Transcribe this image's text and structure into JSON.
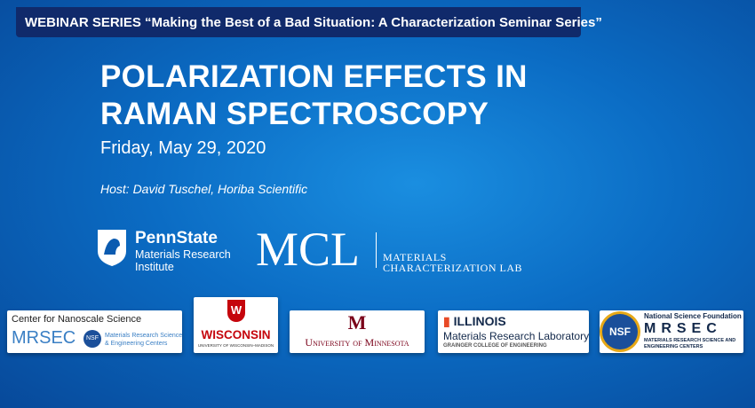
{
  "banner": "WEBINAR SERIES “Making the Best of a Bad Situation: A Characterization Seminar Series”",
  "title": "POLARIZATION EFFECTS IN RAMAN SPECTROSCOPY",
  "date": "Friday, May 29, 2020",
  "host": "Host: David Tuschel, Horiba Scientific",
  "hosts": {
    "pennstate": {
      "name": "PennState",
      "line1": "Materials Research",
      "line2": "Institute"
    },
    "mcl": {
      "name": "MCL",
      "line1": "Materials",
      "line2": "Characterization Lab"
    }
  },
  "sponsors": [
    {
      "title": "Center for Nanoscale Science",
      "name": "MRSEC",
      "badge": "NSF",
      "line1": "Materials Research Science",
      "line2": "& Engineering Centers"
    },
    {
      "badge": "W",
      "name": "WISCONSIN",
      "line1": "UNIVERSITY OF WISCONSIN–MADISON"
    },
    {
      "badge": "M",
      "name": "University of Minnesota"
    },
    {
      "name": "ILLINOIS",
      "line1": "Materials Research Laboratory",
      "line2": "GRAINGER COLLEGE OF ENGINEERING"
    },
    {
      "title": "National Science Foundation",
      "badge": "NSF",
      "name": "MRSEC",
      "line1": "MATERIALS RESEARCH SCIENCE AND",
      "line2": "ENGINEERING CENTERS"
    }
  ]
}
